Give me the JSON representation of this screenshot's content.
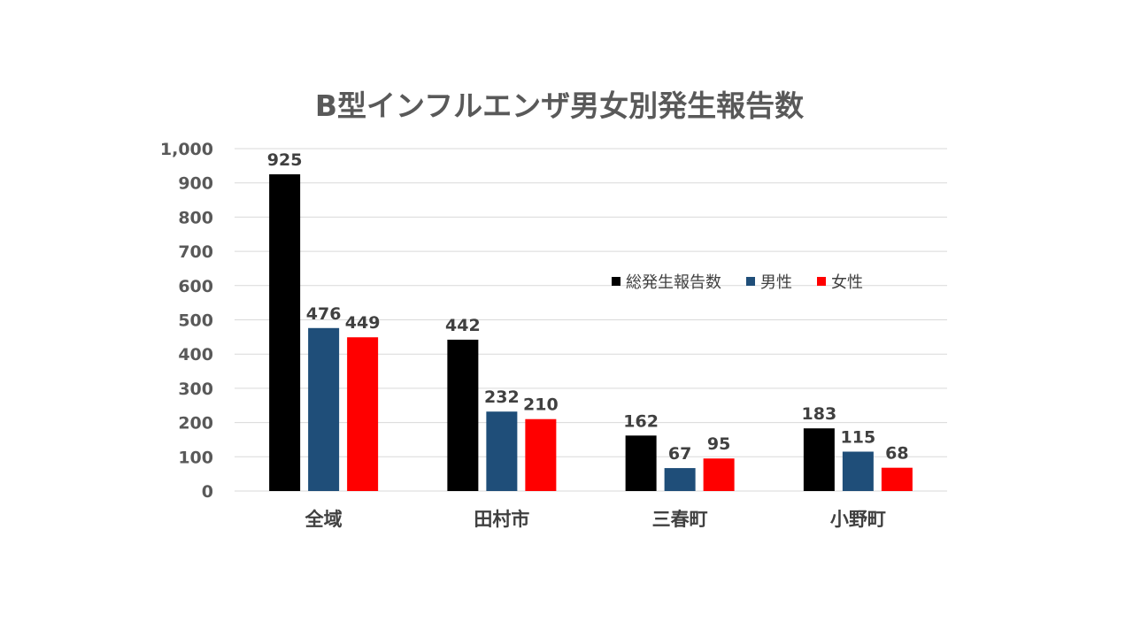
{
  "chart_data": {
    "type": "bar",
    "title": "B型インフルエンザ男女別発生報告数",
    "categories": [
      "全域",
      "田村市",
      "三春町",
      "小野町"
    ],
    "series": [
      {
        "name": "総発生報告数",
        "color": "#000000",
        "values": [
          925,
          442,
          162,
          183
        ]
      },
      {
        "name": "男性",
        "color": "#1f4e79",
        "values": [
          476,
          232,
          67,
          115
        ]
      },
      {
        "name": "女性",
        "color": "#ff0000",
        "values": [
          449,
          210,
          95,
          68
        ]
      }
    ],
    "ylim": [
      0,
      1000
    ],
    "yticks": [
      0,
      100,
      200,
      300,
      400,
      500,
      600,
      700,
      800,
      900,
      1000
    ],
    "ytick_labels": [
      "0",
      "100",
      "200",
      "300",
      "400",
      "500",
      "600",
      "700",
      "800",
      "900",
      "1,000"
    ],
    "grid": true,
    "legend_position": "center-right",
    "data_labels": true
  }
}
